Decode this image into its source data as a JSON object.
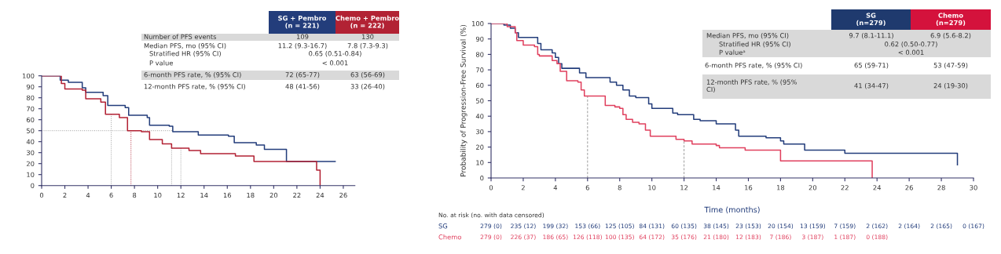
{
  "chart_data": [
    {
      "type": "step",
      "xlim": [
        0,
        27
      ],
      "ylim": [
        0,
        100
      ],
      "xticks": [
        0,
        2,
        4,
        6,
        8,
        10,
        12,
        14,
        16,
        18,
        20,
        22,
        24,
        26
      ],
      "yticks": [
        0,
        10,
        20,
        30,
        40,
        50,
        60,
        70,
        80,
        90,
        100
      ],
      "series": [
        {
          "color": "#233d7b",
          "x": [
            0,
            1.6,
            2.3,
            3.5,
            3.8,
            5.3,
            5.7,
            7.2,
            7.5,
            9.1,
            9.3,
            11.0,
            11.3,
            13.5,
            16.1,
            16.6,
            18.5,
            19.2,
            21.1,
            25.3
          ],
          "values": [
            100,
            96,
            94,
            89,
            85,
            82,
            73,
            71,
            64,
            62,
            55,
            54,
            49,
            46,
            45,
            39,
            37,
            33,
            22,
            22
          ]
        },
        {
          "color": "#b22234",
          "x": [
            0,
            1.7,
            2.0,
            3.5,
            3.8,
            5.1,
            5.5,
            6.7,
            7.4,
            8.6,
            9.3,
            10.4,
            11.2,
            12.7,
            13.7,
            16.7,
            18.3,
            23.7,
            24.0
          ],
          "values": [
            100,
            93,
            88,
            87,
            79,
            76,
            65,
            62,
            50,
            49,
            42,
            38,
            34,
            32,
            29,
            27,
            22,
            14,
            0
          ]
        }
      ],
      "ref_lines": [
        {
          "axis": "y",
          "value": 50,
          "color": "#999999"
        },
        {
          "axis": "x",
          "value": 6,
          "color": "#999999"
        },
        {
          "axis": "x",
          "value": 7.7,
          "color": "#b22234"
        },
        {
          "axis": "x",
          "value": 11.2,
          "color": "#999999"
        },
        {
          "axis": "x",
          "value": 12,
          "color": "#999999"
        }
      ],
      "annotations": [
        "SG + Pembro\n(n = 221)",
        "Chemo + Pembro\n(n = 222)",
        "Number of PFS events",
        "109",
        "130",
        "Median PFS, mo (95% CI)",
        "11.2 (9.3-16.7)",
        "7.8 (7.3-9.3)",
        "Stratified HR (95% CI)",
        "0.65 (0.51-0.84)",
        "P value",
        "< 0.001",
        "6-month PFS rate, % (95% CI)",
        "72 (65-77)",
        "63 (56-69)",
        "12-month PFS rate, % (95% CI)",
        "48 (41-56)",
        "33 (26-40)"
      ]
    },
    {
      "type": "step",
      "xlabel": "Time (months)",
      "ylabel": "Probability of Progression-Free Survival (%)",
      "xlim": [
        0,
        30
      ],
      "ylim": [
        0,
        100
      ],
      "xticks": [
        0,
        2,
        4,
        6,
        8,
        10,
        12,
        14,
        16,
        18,
        20,
        22,
        24,
        26,
        28,
        30
      ],
      "yticks": [
        0,
        10,
        20,
        30,
        40,
        50,
        60,
        70,
        80,
        90,
        100
      ],
      "series": [
        {
          "color": "#233d7b",
          "x": [
            0,
            0.8,
            1.2,
            1.5,
            1.7,
            2.6,
            2.9,
            3.1,
            3.8,
            4.0,
            4.2,
            4.4,
            5.2,
            5.5,
            5.9,
            7.0,
            7.4,
            7.8,
            8.2,
            8.6,
            9.0,
            9.6,
            9.8,
            10.0,
            11.0,
            11.3,
            11.6,
            12.4,
            12.6,
            13.0,
            13.8,
            14.0,
            15.0,
            15.2,
            15.4,
            17.1,
            18.0,
            18.2,
            19.5,
            22.0,
            29.0
          ],
          "values": [
            100,
            99,
            97,
            94,
            91,
            91,
            87,
            83,
            81,
            78,
            74,
            71,
            71,
            68,
            65,
            65,
            62,
            60,
            57,
            53,
            52,
            52,
            48,
            45,
            45,
            42,
            41,
            41,
            38,
            37,
            37,
            35,
            35,
            31,
            27,
            26,
            24,
            22,
            18,
            16,
            8.5
          ]
        },
        {
          "color": "#e0405e",
          "x": [
            0,
            1.0,
            1.5,
            1.6,
            2.0,
            2.7,
            2.9,
            3.0,
            3.8,
            4.1,
            4.3,
            4.7,
            5.4,
            5.6,
            5.8,
            6.8,
            7.1,
            7.7,
            8.0,
            8.2,
            8.4,
            8.8,
            9.2,
            9.6,
            9.9,
            11.5,
            12.0,
            12.5,
            14.0,
            14.2,
            15.8,
            18.0,
            23.7
          ],
          "values": [
            100,
            98,
            94,
            89,
            86,
            85,
            80,
            79,
            76,
            74,
            69,
            63,
            62,
            57,
            53,
            53,
            47,
            46,
            45,
            41,
            38,
            36,
            35,
            31,
            27,
            25,
            24,
            22,
            21,
            19.5,
            18,
            11,
            0
          ]
        }
      ],
      "ref_lines": [
        {
          "axis": "x",
          "value": 6,
          "color": "#999999",
          "line_style": "dashed"
        },
        {
          "axis": "x",
          "value": 12,
          "color": "#999999",
          "line_style": "dashed"
        }
      ],
      "annotations": [
        "SG\n(n=279)",
        "Chemo\n(n=279)",
        "Median PFS, mo (95% CI)",
        "9.7 (8.1-11.1)",
        "6.9 (5.6-8.2)",
        "Stratified HR (95% CI)",
        "0.62 (0.50-0.77)",
        "P valueᵃ",
        "< 0.001",
        "6-month PFS rate, % (95% CI)",
        "65 (59-71)",
        "53 (47-59)",
        "12-month PFS rate, % (95%\nCI)",
        "41 (34-47)",
        "24 (19-30)",
        "No. at risk (no. with data censored)",
        "SG",
        "279 (0)",
        "235 (12)",
        "199 (32)",
        "153 (66)",
        "125 (105)",
        "84 (131)",
        "60 (135)",
        "38 (145)",
        "23 (153)",
        "20 (154)",
        "13 (159)",
        "7 (159)",
        "2 (162)",
        "2 (164)",
        "2 (165)",
        "0 (167)",
        "Chemo",
        "279 (0)",
        "226 (37)",
        "186 (65)",
        "126 (118)",
        "100 (135)",
        "64 (172)",
        "35 (176)",
        "21 (180)",
        "12 (183)",
        "7 (186)",
        "3 (187)",
        "1 (187)",
        "0 (188)"
      ]
    }
  ]
}
